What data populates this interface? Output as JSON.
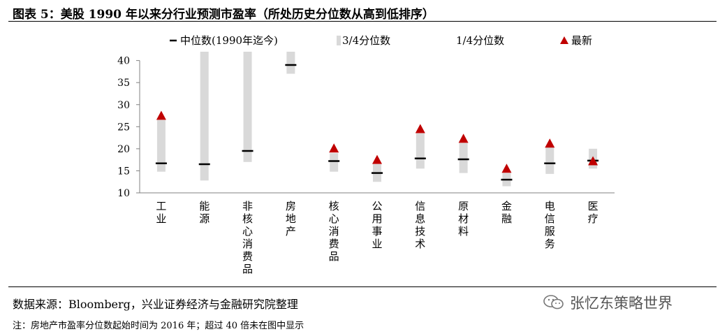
{
  "title": "图表 5：美股 1990 年以来分行业预测市盈率（所处历史分位数从高到低排序）",
  "source": "数据来源：Bloomberg，兴业证券经济与金融研究院整理",
  "note": "注：房地产市盈率分位数起始时间为 2016 年；超过 40 倍未在图中显示",
  "watermark": "张忆东策略世界",
  "watermark_icon": "wechat-icon",
  "colors": {
    "bar": "#d9d9d9",
    "median": "#000000",
    "latest": "#c00000",
    "axis": "#808080"
  },
  "chart_data": {
    "type": "range-bar",
    "categories": [
      "工业",
      "能源",
      "非核心消费品",
      "房地产",
      "核心消费品",
      "公用事业",
      "信息技术",
      "原材料",
      "金融",
      "电信服务",
      "医疗"
    ],
    "series": [
      {
        "name": "中位数(1990年迄今)",
        "values": [
          16.7,
          16.5,
          19.5,
          39.0,
          17.2,
          14.5,
          17.8,
          17.6,
          13.0,
          16.7,
          17.3
        ]
      },
      {
        "name": "3/4分位数",
        "values": [
          26.5,
          42.0,
          42.0,
          42.0,
          19.0,
          16.5,
          23.5,
          21.3,
          14.5,
          20.3,
          20.0
        ]
      },
      {
        "name": "1/4分位数",
        "values": [
          14.8,
          12.8,
          17.0,
          37.0,
          14.8,
          12.5,
          15.5,
          14.5,
          11.5,
          14.3,
          15.5
        ]
      },
      {
        "name": "最新",
        "values": [
          27.5,
          null,
          null,
          null,
          20.1,
          17.5,
          24.5,
          22.3,
          15.5,
          21.2,
          17.2
        ]
      }
    ],
    "yticks": [
      10,
      15,
      20,
      25,
      30,
      35,
      40
    ],
    "ylim": [
      10,
      42
    ],
    "legend_position": "top"
  }
}
